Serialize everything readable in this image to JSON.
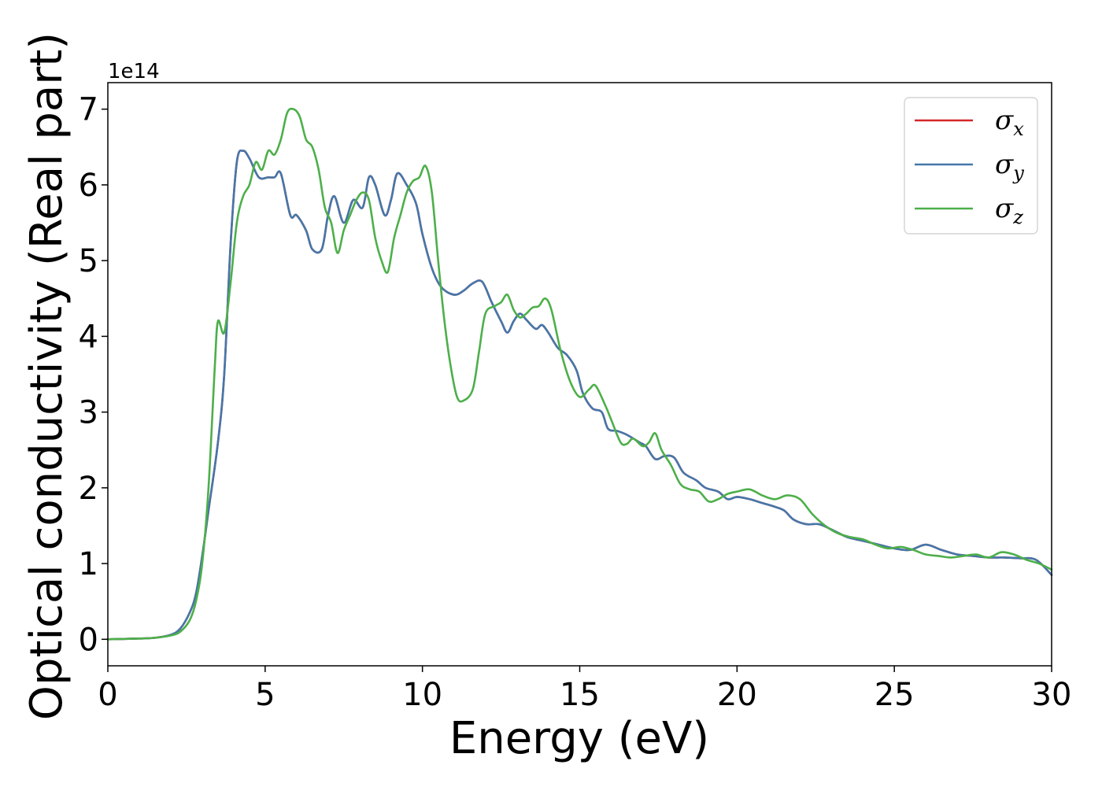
{
  "chart_data": {
    "type": "line",
    "title": "",
    "xlabel": "Energy (eV)",
    "ylabel": "Optical conductivity (Real part)",
    "y_offset_label": "1e14",
    "xlim": [
      0,
      30
    ],
    "ylim": [
      -0.35,
      7.35
    ],
    "x_ticks": [
      0,
      5,
      10,
      15,
      20,
      25,
      30
    ],
    "y_ticks": [
      0,
      1,
      2,
      3,
      4,
      5,
      6,
      7
    ],
    "x_tick_labels": [
      "0",
      "5",
      "10",
      "15",
      "20",
      "25",
      "30"
    ],
    "y_tick_labels": [
      "0",
      "1",
      "2",
      "3",
      "4",
      "5",
      "6",
      "7"
    ],
    "grid": false,
    "legend_position": "top-right",
    "legend": [
      {
        "symbol": "σ",
        "sub": "x",
        "color": "#d62728"
      },
      {
        "symbol": "σ",
        "sub": "y",
        "color": "#4477aa"
      },
      {
        "symbol": "σ",
        "sub": "z",
        "color": "#4daf4a"
      }
    ],
    "series": [
      {
        "name": "σx",
        "color": "#d62728",
        "points": [
          [
            0,
            0
          ],
          [
            1,
            0.01
          ],
          [
            1.5,
            0.02
          ],
          [
            2,
            0.06
          ],
          [
            2.3,
            0.14
          ],
          [
            2.6,
            0.35
          ],
          [
            2.8,
            0.6
          ],
          [
            3.0,
            1.1
          ],
          [
            3.2,
            1.7
          ],
          [
            3.5,
            2.6
          ],
          [
            3.7,
            3.5
          ],
          [
            3.9,
            5.2
          ],
          [
            4.1,
            6.3
          ],
          [
            4.3,
            6.45
          ],
          [
            4.5,
            6.35
          ],
          [
            4.8,
            6.1
          ],
          [
            5.1,
            6.1
          ],
          [
            5.3,
            6.1
          ],
          [
            5.5,
            6.15
          ],
          [
            5.8,
            5.6
          ],
          [
            6.0,
            5.6
          ],
          [
            6.3,
            5.4
          ],
          [
            6.5,
            5.15
          ],
          [
            6.8,
            5.15
          ],
          [
            7.0,
            5.6
          ],
          [
            7.2,
            5.85
          ],
          [
            7.5,
            5.5
          ],
          [
            7.8,
            5.8
          ],
          [
            8.1,
            5.7
          ],
          [
            8.3,
            6.1
          ],
          [
            8.5,
            6.0
          ],
          [
            8.8,
            5.6
          ],
          [
            9.0,
            5.8
          ],
          [
            9.2,
            6.15
          ],
          [
            9.5,
            6.0
          ],
          [
            9.8,
            5.75
          ],
          [
            10.0,
            5.35
          ],
          [
            10.3,
            4.9
          ],
          [
            10.6,
            4.65
          ],
          [
            11.0,
            4.55
          ],
          [
            11.3,
            4.6
          ],
          [
            11.6,
            4.7
          ],
          [
            11.9,
            4.72
          ],
          [
            12.2,
            4.45
          ],
          [
            12.5,
            4.2
          ],
          [
            12.7,
            4.05
          ],
          [
            12.9,
            4.2
          ],
          [
            13.1,
            4.3
          ],
          [
            13.3,
            4.22
          ],
          [
            13.6,
            4.1
          ],
          [
            13.8,
            4.15
          ],
          [
            14.0,
            4.05
          ],
          [
            14.3,
            3.85
          ],
          [
            14.6,
            3.75
          ],
          [
            14.9,
            3.55
          ],
          [
            15.1,
            3.25
          ],
          [
            15.4,
            3.05
          ],
          [
            15.7,
            3.0
          ],
          [
            15.9,
            2.78
          ],
          [
            16.2,
            2.75
          ],
          [
            16.5,
            2.7
          ],
          [
            16.9,
            2.6
          ],
          [
            17.1,
            2.55
          ],
          [
            17.4,
            2.38
          ],
          [
            17.7,
            2.42
          ],
          [
            18.0,
            2.4
          ],
          [
            18.3,
            2.2
          ],
          [
            18.7,
            2.1
          ],
          [
            19.0,
            2.0
          ],
          [
            19.4,
            1.95
          ],
          [
            19.7,
            1.85
          ],
          [
            20.0,
            1.88
          ],
          [
            20.4,
            1.85
          ],
          [
            20.8,
            1.8
          ],
          [
            21.2,
            1.75
          ],
          [
            21.5,
            1.7
          ],
          [
            21.8,
            1.58
          ],
          [
            22.2,
            1.52
          ],
          [
            22.6,
            1.52
          ],
          [
            23.0,
            1.45
          ],
          [
            23.5,
            1.35
          ],
          [
            24.0,
            1.3
          ],
          [
            24.5,
            1.25
          ],
          [
            25.0,
            1.2
          ],
          [
            25.5,
            1.18
          ],
          [
            26.0,
            1.25
          ],
          [
            26.5,
            1.18
          ],
          [
            27.0,
            1.12
          ],
          [
            27.5,
            1.1
          ],
          [
            28.0,
            1.08
          ],
          [
            28.5,
            1.08
          ],
          [
            29.0,
            1.07
          ],
          [
            29.5,
            1.05
          ],
          [
            30,
            0.85
          ]
        ]
      },
      {
        "name": "σy",
        "color": "#4477aa",
        "points": [
          [
            0,
            0
          ],
          [
            1,
            0.01
          ],
          [
            1.5,
            0.02
          ],
          [
            2,
            0.06
          ],
          [
            2.3,
            0.14
          ],
          [
            2.6,
            0.35
          ],
          [
            2.8,
            0.6
          ],
          [
            3.0,
            1.1
          ],
          [
            3.2,
            1.7
          ],
          [
            3.5,
            2.6
          ],
          [
            3.7,
            3.5
          ],
          [
            3.9,
            5.2
          ],
          [
            4.1,
            6.3
          ],
          [
            4.3,
            6.45
          ],
          [
            4.5,
            6.35
          ],
          [
            4.8,
            6.1
          ],
          [
            5.1,
            6.1
          ],
          [
            5.3,
            6.1
          ],
          [
            5.5,
            6.15
          ],
          [
            5.8,
            5.6
          ],
          [
            6.0,
            5.6
          ],
          [
            6.3,
            5.4
          ],
          [
            6.5,
            5.15
          ],
          [
            6.8,
            5.15
          ],
          [
            7.0,
            5.6
          ],
          [
            7.2,
            5.85
          ],
          [
            7.5,
            5.5
          ],
          [
            7.8,
            5.8
          ],
          [
            8.1,
            5.7
          ],
          [
            8.3,
            6.1
          ],
          [
            8.5,
            6.0
          ],
          [
            8.8,
            5.6
          ],
          [
            9.0,
            5.8
          ],
          [
            9.2,
            6.15
          ],
          [
            9.5,
            6.0
          ],
          [
            9.8,
            5.75
          ],
          [
            10.0,
            5.35
          ],
          [
            10.3,
            4.9
          ],
          [
            10.6,
            4.65
          ],
          [
            11.0,
            4.55
          ],
          [
            11.3,
            4.6
          ],
          [
            11.6,
            4.7
          ],
          [
            11.9,
            4.72
          ],
          [
            12.2,
            4.45
          ],
          [
            12.5,
            4.2
          ],
          [
            12.7,
            4.05
          ],
          [
            12.9,
            4.2
          ],
          [
            13.1,
            4.3
          ],
          [
            13.3,
            4.22
          ],
          [
            13.6,
            4.1
          ],
          [
            13.8,
            4.15
          ],
          [
            14.0,
            4.05
          ],
          [
            14.3,
            3.85
          ],
          [
            14.6,
            3.75
          ],
          [
            14.9,
            3.55
          ],
          [
            15.1,
            3.25
          ],
          [
            15.4,
            3.05
          ],
          [
            15.7,
            3.0
          ],
          [
            15.9,
            2.78
          ],
          [
            16.2,
            2.75
          ],
          [
            16.5,
            2.7
          ],
          [
            16.9,
            2.6
          ],
          [
            17.1,
            2.55
          ],
          [
            17.4,
            2.38
          ],
          [
            17.7,
            2.42
          ],
          [
            18.0,
            2.4
          ],
          [
            18.3,
            2.2
          ],
          [
            18.7,
            2.1
          ],
          [
            19.0,
            2.0
          ],
          [
            19.4,
            1.95
          ],
          [
            19.7,
            1.85
          ],
          [
            20.0,
            1.88
          ],
          [
            20.4,
            1.85
          ],
          [
            20.8,
            1.8
          ],
          [
            21.2,
            1.75
          ],
          [
            21.5,
            1.7
          ],
          [
            21.8,
            1.58
          ],
          [
            22.2,
            1.52
          ],
          [
            22.6,
            1.52
          ],
          [
            23.0,
            1.45
          ],
          [
            23.5,
            1.35
          ],
          [
            24.0,
            1.3
          ],
          [
            24.5,
            1.25
          ],
          [
            25.0,
            1.2
          ],
          [
            25.5,
            1.18
          ],
          [
            26.0,
            1.25
          ],
          [
            26.5,
            1.18
          ],
          [
            27.0,
            1.12
          ],
          [
            27.5,
            1.1
          ],
          [
            28.0,
            1.08
          ],
          [
            28.5,
            1.08
          ],
          [
            29.0,
            1.07
          ],
          [
            29.5,
            1.05
          ],
          [
            30,
            0.85
          ]
        ]
      },
      {
        "name": "σz",
        "color": "#4daf4a",
        "points": [
          [
            0,
            0
          ],
          [
            1,
            0.01
          ],
          [
            1.5,
            0.02
          ],
          [
            2,
            0.05
          ],
          [
            2.3,
            0.1
          ],
          [
            2.6,
            0.25
          ],
          [
            2.8,
            0.5
          ],
          [
            3.0,
            1.0
          ],
          [
            3.2,
            2.0
          ],
          [
            3.4,
            3.6
          ],
          [
            3.5,
            4.2
          ],
          [
            3.7,
            4.05
          ],
          [
            3.9,
            4.7
          ],
          [
            4.1,
            5.5
          ],
          [
            4.3,
            5.85
          ],
          [
            4.5,
            6.0
          ],
          [
            4.7,
            6.3
          ],
          [
            4.9,
            6.2
          ],
          [
            5.1,
            6.45
          ],
          [
            5.3,
            6.4
          ],
          [
            5.5,
            6.6
          ],
          [
            5.7,
            6.95
          ],
          [
            5.9,
            7.0
          ],
          [
            6.1,
            6.9
          ],
          [
            6.3,
            6.6
          ],
          [
            6.5,
            6.5
          ],
          [
            6.7,
            6.2
          ],
          [
            6.9,
            5.7
          ],
          [
            7.1,
            5.5
          ],
          [
            7.3,
            5.1
          ],
          [
            7.5,
            5.4
          ],
          [
            7.7,
            5.6
          ],
          [
            7.9,
            5.8
          ],
          [
            8.1,
            5.9
          ],
          [
            8.3,
            5.8
          ],
          [
            8.5,
            5.3
          ],
          [
            8.7,
            5.0
          ],
          [
            8.9,
            4.85
          ],
          [
            9.1,
            5.3
          ],
          [
            9.3,
            5.6
          ],
          [
            9.5,
            5.9
          ],
          [
            9.7,
            6.05
          ],
          [
            9.9,
            6.1
          ],
          [
            10.1,
            6.25
          ],
          [
            10.3,
            5.9
          ],
          [
            10.5,
            5.0
          ],
          [
            10.7,
            4.2
          ],
          [
            10.9,
            3.6
          ],
          [
            11.1,
            3.2
          ],
          [
            11.3,
            3.15
          ],
          [
            11.6,
            3.3
          ],
          [
            11.8,
            3.8
          ],
          [
            12.0,
            4.3
          ],
          [
            12.3,
            4.4
          ],
          [
            12.5,
            4.45
          ],
          [
            12.7,
            4.55
          ],
          [
            12.9,
            4.35
          ],
          [
            13.1,
            4.25
          ],
          [
            13.3,
            4.3
          ],
          [
            13.5,
            4.38
          ],
          [
            13.7,
            4.4
          ],
          [
            13.9,
            4.5
          ],
          [
            14.1,
            4.35
          ],
          [
            14.4,
            3.8
          ],
          [
            14.7,
            3.4
          ],
          [
            15.0,
            3.2
          ],
          [
            15.3,
            3.3
          ],
          [
            15.5,
            3.35
          ],
          [
            15.8,
            3.1
          ],
          [
            16.0,
            2.9
          ],
          [
            16.3,
            2.6
          ],
          [
            16.5,
            2.58
          ],
          [
            16.7,
            2.65
          ],
          [
            17.0,
            2.55
          ],
          [
            17.2,
            2.6
          ],
          [
            17.4,
            2.72
          ],
          [
            17.6,
            2.5
          ],
          [
            17.9,
            2.3
          ],
          [
            18.2,
            2.05
          ],
          [
            18.5,
            1.98
          ],
          [
            18.8,
            1.95
          ],
          [
            19.1,
            1.82
          ],
          [
            19.4,
            1.85
          ],
          [
            19.7,
            1.92
          ],
          [
            20.0,
            1.95
          ],
          [
            20.4,
            1.98
          ],
          [
            20.8,
            1.9
          ],
          [
            21.2,
            1.85
          ],
          [
            21.6,
            1.9
          ],
          [
            22.0,
            1.85
          ],
          [
            22.4,
            1.65
          ],
          [
            22.8,
            1.5
          ],
          [
            23.2,
            1.4
          ],
          [
            23.6,
            1.35
          ],
          [
            24.0,
            1.32
          ],
          [
            24.4,
            1.25
          ],
          [
            24.8,
            1.2
          ],
          [
            25.2,
            1.22
          ],
          [
            25.6,
            1.18
          ],
          [
            26.0,
            1.12
          ],
          [
            26.4,
            1.1
          ],
          [
            26.8,
            1.08
          ],
          [
            27.2,
            1.1
          ],
          [
            27.6,
            1.12
          ],
          [
            28.0,
            1.08
          ],
          [
            28.4,
            1.15
          ],
          [
            28.8,
            1.12
          ],
          [
            29.2,
            1.05
          ],
          [
            29.6,
            1.0
          ],
          [
            30,
            0.92
          ]
        ]
      }
    ]
  }
}
